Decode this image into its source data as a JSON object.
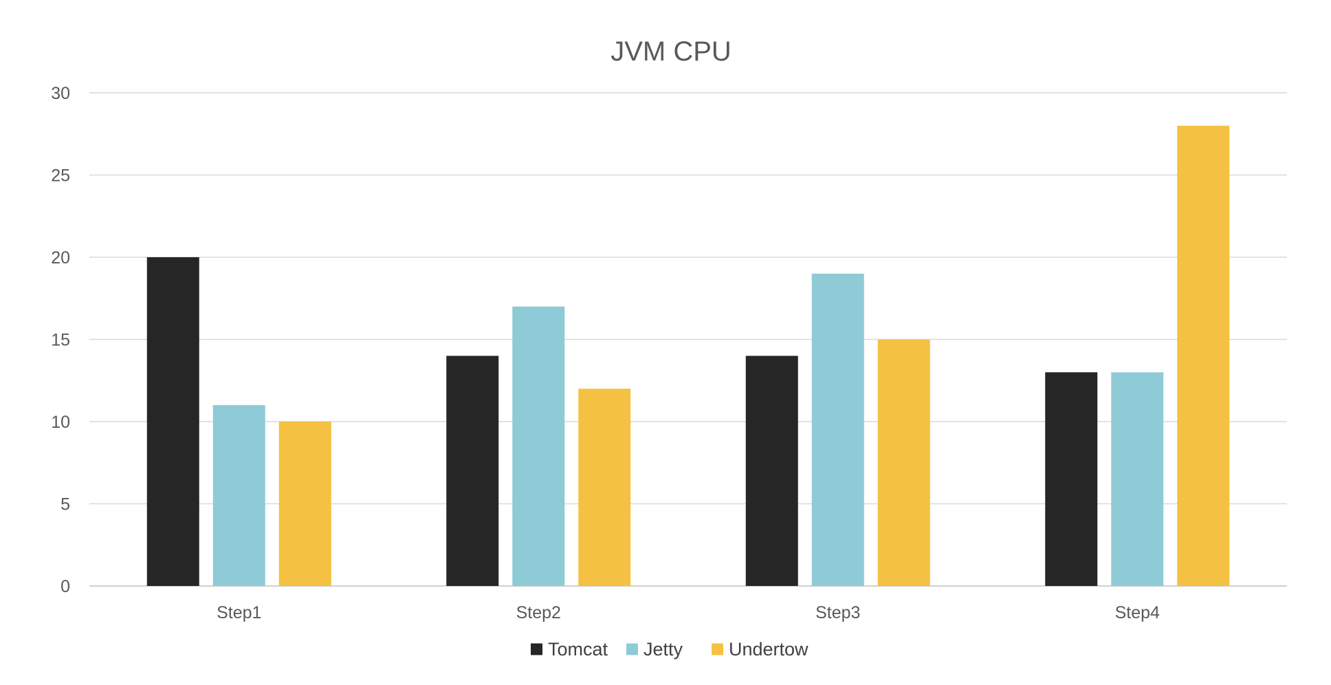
{
  "chart_data": {
    "type": "bar",
    "title": "JVM CPU",
    "xlabel": "",
    "ylabel": "",
    "categories": [
      "Step1",
      "Step2",
      "Step3",
      "Step4"
    ],
    "series": [
      {
        "name": "Tomcat",
        "color": "#262626",
        "values": [
          20,
          14,
          14,
          13
        ]
      },
      {
        "name": "Jetty",
        "color": "#8ecbd6",
        "values": [
          11,
          17,
          19,
          13
        ]
      },
      {
        "name": "Undertow",
        "color": "#f5c142",
        "values": [
          10,
          12,
          15,
          28
        ]
      }
    ],
    "ylim": [
      0,
      30
    ],
    "yticks": [
      0,
      5,
      10,
      15,
      20,
      25,
      30
    ],
    "grid": true,
    "legend_position": "bottom"
  }
}
